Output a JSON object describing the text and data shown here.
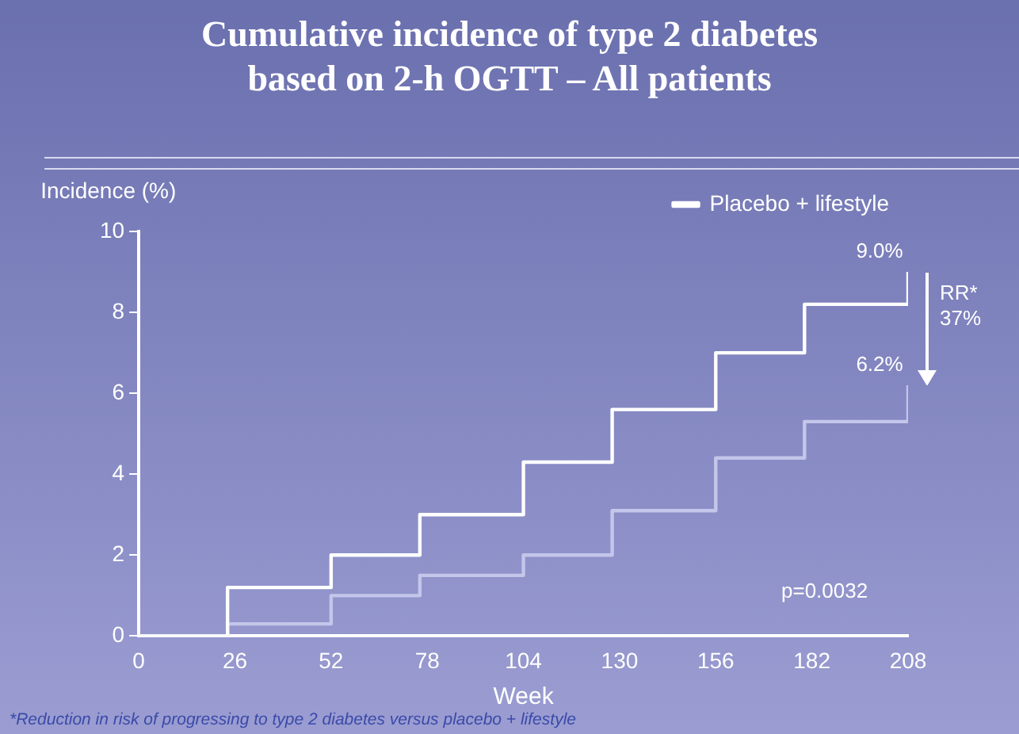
{
  "chart_data": {
    "type": "step",
    "title": "Cumulative incidence of type 2 diabetes\nbased on 2-h OGTT – All patients",
    "ylabel": "Incidence (%)",
    "xlabel": "Week",
    "x": [
      0,
      24,
      52,
      76,
      104,
      128,
      156,
      180,
      208
    ],
    "series": [
      {
        "name": "Placebo + lifestyle",
        "color": "#ffffff",
        "values": [
          0,
          1.2,
          2.0,
          3.0,
          4.3,
          5.6,
          7.0,
          8.2,
          9.0
        ]
      },
      {
        "color": "#c4c6ea",
        "values": [
          0,
          0.3,
          1.0,
          1.5,
          2.0,
          3.1,
          4.4,
          5.3,
          6.2
        ]
      }
    ],
    "xlim": [
      0,
      208
    ],
    "xticks": [
      0,
      26,
      52,
      78,
      104,
      130,
      156,
      182,
      208
    ],
    "ylim": [
      0,
      10
    ],
    "yticks": [
      0,
      2,
      4,
      6,
      8,
      10
    ],
    "grid": false,
    "legend": "top right",
    "marker": "none",
    "line_style": "solid",
    "annotations": [
      {
        "text": "9.0%",
        "x": 208,
        "y": 9.0
      },
      {
        "text": "6.2%",
        "x": 208,
        "y": 6.2
      },
      "RR*\n37%",
      "p=0.0032",
      "*Reduction in risk of progressing to type 2 diabetes versus placebo + lifestyle"
    ]
  }
}
